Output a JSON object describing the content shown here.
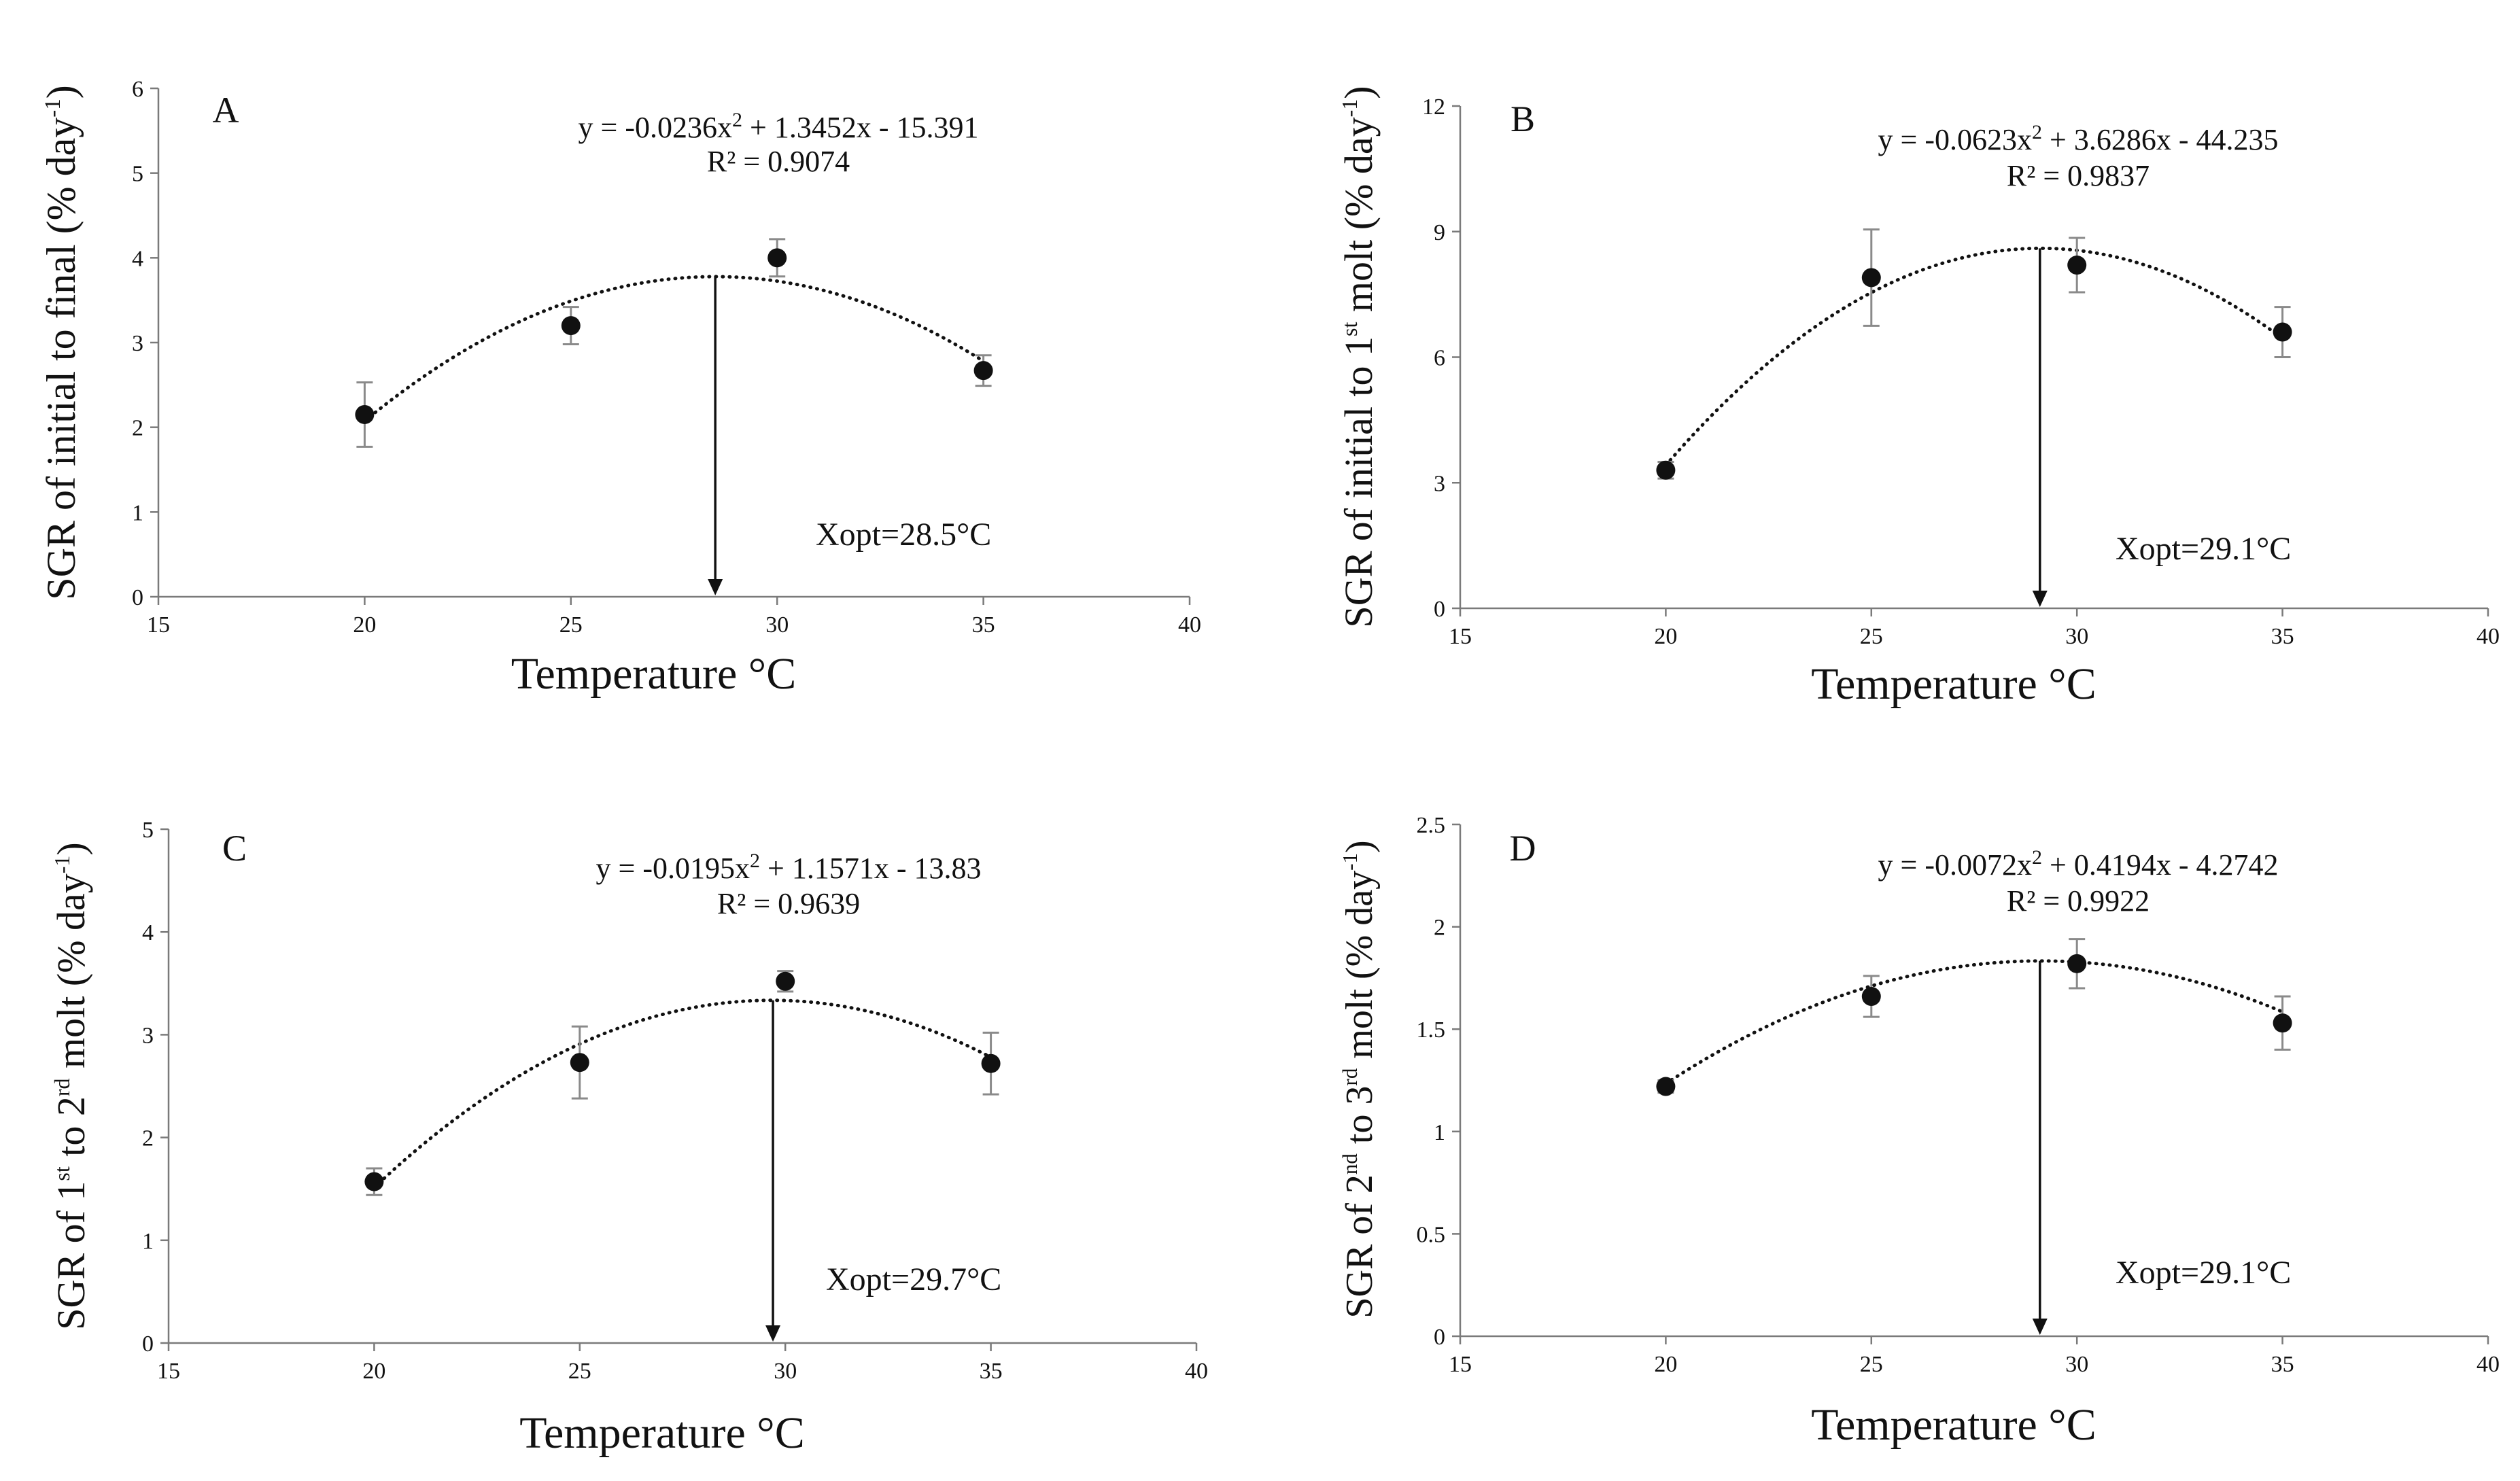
{
  "chart_data": [
    {
      "type": "scatter",
      "panel": "A",
      "ylabel": {
        "pre": "SGR of initial to final (% day",
        "sup": "-1",
        "post": ")"
      },
      "xlabel": "Temperature °C",
      "xlim": [
        15,
        40
      ],
      "xticks": [
        15,
        20,
        25,
        30,
        35,
        40
      ],
      "ylim": [
        0,
        6
      ],
      "yticks": [
        0,
        1,
        2,
        3,
        4,
        5,
        6
      ],
      "ytick_labels": [
        "0",
        "1",
        "2",
        "3",
        "4",
        "5",
        "6"
      ],
      "x": [
        20,
        25,
        30,
        35
      ],
      "y": [
        2.15,
        3.2,
        4.0,
        2.67
      ],
      "error": [
        0.38,
        0.22,
        0.22,
        0.18
      ],
      "trendline": {
        "type": "poly2",
        "a": -0.0236,
        "b": 1.3452,
        "c": -15.391,
        "dotted": true
      },
      "equation": {
        "pre": "y = -0.0236x",
        "sup": "2",
        "post": " + 1.3452x - 15.391"
      },
      "r2_label": "R² = 0.9074",
      "optimum": {
        "x": 28.5,
        "label": "Xopt=28.5°C"
      }
    },
    {
      "type": "scatter",
      "panel": "B",
      "ylabel": {
        "pre": "SGR of initial to 1",
        "sup": "st",
        "post": " molt (% day",
        "sup2": "-1",
        "post2": ")"
      },
      "xlabel": "Temperature °C",
      "xlim": [
        15,
        40
      ],
      "xticks": [
        15,
        20,
        25,
        30,
        35,
        40
      ],
      "ylim": [
        0,
        12
      ],
      "yticks": [
        0,
        3,
        6,
        9,
        12
      ],
      "ytick_labels": [
        "0",
        "3",
        "6",
        "9",
        "12"
      ],
      "x": [
        20,
        25,
        30,
        35
      ],
      "y": [
        3.3,
        7.9,
        8.2,
        6.6
      ],
      "error": [
        0.2,
        1.15,
        0.65,
        0.6
      ],
      "trendline": {
        "type": "poly2",
        "a": -0.0623,
        "b": 3.6286,
        "c": -44.235,
        "dotted": true
      },
      "equation": {
        "pre": "y = -0.0623x",
        "sup": "2",
        "post": " + 3.6286x - 44.235"
      },
      "r2_label": "R² = 0.9837",
      "optimum": {
        "x": 29.1,
        "label": "Xopt=29.1°C"
      }
    },
    {
      "type": "scatter",
      "panel": "C",
      "ylabel": {
        "pre": "SGR of 1",
        "sup": "st",
        "post": " to 2",
        "sup2": "rd",
        "post2": " molt (% day",
        "sup3": "-1",
        "post3": ")"
      },
      "xlabel": "Temperature °C",
      "xlim": [
        15,
        40
      ],
      "xticks": [
        15,
        20,
        25,
        30,
        35,
        40
      ],
      "ylim": [
        0,
        5
      ],
      "yticks": [
        0,
        1,
        2,
        3,
        4,
        5
      ],
      "ytick_labels": [
        "0",
        "1",
        "2",
        "3",
        "4",
        "5"
      ],
      "x": [
        20,
        25,
        30,
        35
      ],
      "y": [
        1.57,
        2.73,
        3.52,
        2.72
      ],
      "error": [
        0.13,
        0.35,
        0.1,
        0.3
      ],
      "trendline": {
        "type": "poly2",
        "a": -0.0195,
        "b": 1.1571,
        "c": -13.83,
        "dotted": true
      },
      "equation": {
        "pre": "y = -0.0195x",
        "sup": "2",
        "post": " + 1.1571x - 13.83"
      },
      "r2_label": "R² = 0.9639",
      "optimum": {
        "x": 29.7,
        "label": "Xopt=29.7°C"
      }
    },
    {
      "type": "scatter",
      "panel": "D",
      "ylabel": {
        "pre": "SGR of 2",
        "sup": "nd",
        "post": " to 3",
        "sup2": "rd",
        "post2": " molt (% day",
        "sup3": "-1",
        "post3": ")"
      },
      "xlabel": "Temperature °C",
      "xlim": [
        15,
        40
      ],
      "xticks": [
        15,
        20,
        25,
        30,
        35,
        40
      ],
      "ylim": [
        0,
        2.5
      ],
      "yticks": [
        0,
        0.5,
        1,
        1.5,
        2,
        2.5
      ],
      "ytick_labels": [
        "0",
        "0.5",
        "1",
        "1.5",
        "2",
        "2.5"
      ],
      "x": [
        20,
        25,
        30,
        35
      ],
      "y": [
        1.22,
        1.66,
        1.82,
        1.53
      ],
      "error": [
        0.03,
        0.1,
        0.12,
        0.13
      ],
      "trendline": {
        "type": "poly2",
        "a": -0.0072,
        "b": 0.4194,
        "c": -4.2742,
        "dotted": true
      },
      "equation": {
        "pre": "y = -0.0072x",
        "sup": "2",
        "post": " + 0.4194x - 4.2742"
      },
      "r2_label": "R² = 0.9922",
      "optimum": {
        "x": 29.1,
        "label": "Xopt=29.1°C"
      }
    }
  ]
}
